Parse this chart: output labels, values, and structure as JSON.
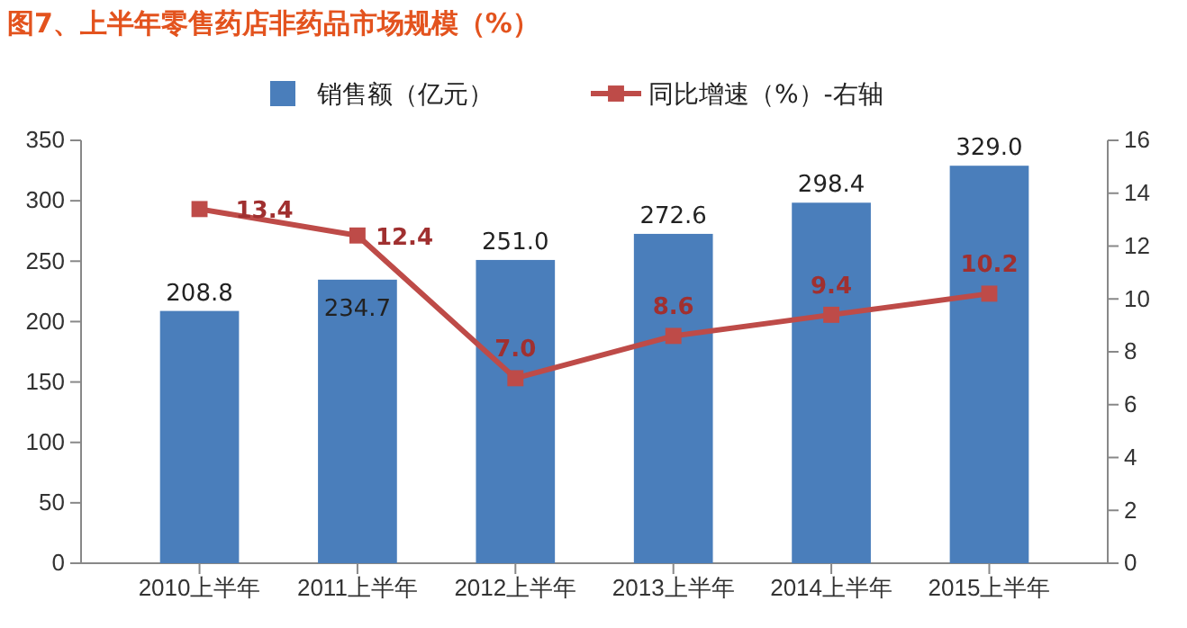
{
  "chart_data": {
    "type": "bar",
    "title": "图7、上半年零售药店非药品市场规模（%）",
    "categories": [
      "2010上半年",
      "2011上半年",
      "2012上半年",
      "2013上半年",
      "2014上半年",
      "2015上半年"
    ],
    "series": [
      {
        "name": "销售额（亿元）",
        "color": "#4a7ebb",
        "values": [
          208.8,
          234.7,
          251.0,
          272.6,
          298.4,
          329.0
        ],
        "value_labels": [
          "208.8",
          "234.7",
          "251.0",
          "272.6",
          "298.4",
          "329.0"
        ]
      },
      {
        "name": "同比增速（%）-右轴",
        "type": "line",
        "axis": "y2",
        "color": "#be4b48",
        "values": [
          13.4,
          12.4,
          7.0,
          8.6,
          9.4,
          10.2
        ],
        "value_labels": [
          "13.4",
          "12.4",
          "7.0",
          "8.6",
          "9.4",
          "10.2"
        ]
      }
    ],
    "ylim": [
      0,
      350
    ],
    "yticks": [
      0,
      50,
      100,
      150,
      200,
      250,
      300,
      350
    ],
    "y2lim": [
      0,
      16
    ],
    "y2ticks": [
      0,
      2,
      4,
      6,
      8,
      10,
      12,
      14,
      16
    ],
    "legend": "top",
    "marker": "square",
    "line_style": "solid"
  }
}
